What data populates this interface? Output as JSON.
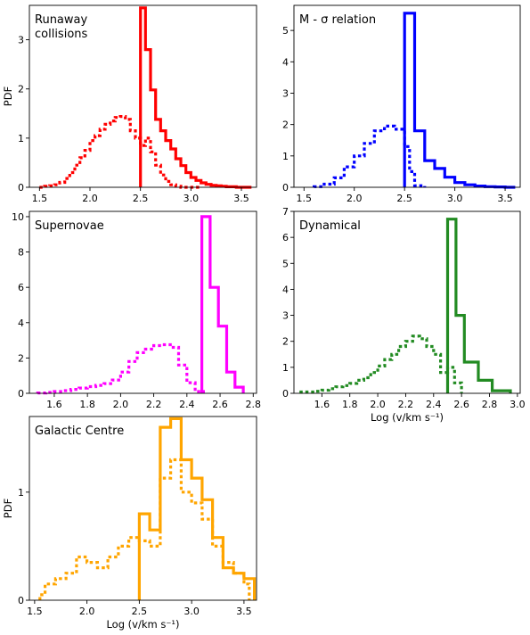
{
  "chart_data": [
    {
      "type": "histogram",
      "title_lines": [
        "Runaway",
        "collisions"
      ],
      "color": "#ff0000",
      "xlim": [
        1.4,
        3.65
      ],
      "ylim": [
        0,
        3.7
      ],
      "xticks": [
        1.5,
        2.0,
        2.5,
        3.0,
        3.5
      ],
      "xtick_labels": [
        "1.5",
        "2.0",
        "2.5",
        "3.0",
        "3.5"
      ],
      "yticks": [
        0,
        1,
        2,
        3
      ],
      "ytick_labels": [
        "0",
        "1",
        "2",
        "3"
      ],
      "ylabel": "PDF",
      "xlabel": "",
      "solid": {
        "edges": [
          2.5,
          2.55,
          2.6,
          2.65,
          2.7,
          2.75,
          2.8,
          2.85,
          2.9,
          2.95,
          3.0,
          3.05,
          3.1,
          3.15,
          3.2,
          3.25,
          3.3,
          3.35,
          3.4,
          3.45,
          3.5,
          3.55,
          3.6
        ],
        "values": [
          3.65,
          2.8,
          1.98,
          1.38,
          1.15,
          0.95,
          0.78,
          0.58,
          0.44,
          0.3,
          0.2,
          0.14,
          0.09,
          0.06,
          0.04,
          0.03,
          0.02,
          0.01,
          0.01,
          0.0,
          0.0,
          0.0
        ]
      },
      "dotted": {
        "edges": [
          1.5,
          1.55,
          1.6,
          1.65,
          1.7,
          1.75,
          1.8,
          1.85,
          1.9,
          1.95,
          2.0,
          2.05,
          2.1,
          2.15,
          2.2,
          2.25,
          2.3,
          2.35,
          2.4,
          2.45,
          2.5,
          2.55,
          2.6,
          2.65,
          2.7,
          2.75,
          2.8,
          2.85,
          2.9,
          2.95,
          3.0,
          3.05,
          3.1
        ],
        "values": [
          0.0,
          0.02,
          0.03,
          0.05,
          0.1,
          0.18,
          0.3,
          0.45,
          0.6,
          0.75,
          0.95,
          1.05,
          1.18,
          1.28,
          1.35,
          1.42,
          1.44,
          1.38,
          1.15,
          1.0,
          0.85,
          1.0,
          0.72,
          0.45,
          0.25,
          0.12,
          0.05,
          0.02,
          0.0,
          0.0,
          0.0,
          0.0
        ]
      }
    },
    {
      "type": "histogram",
      "title_lines": [
        "M - σ relation"
      ],
      "color": "#0000ff",
      "xlim": [
        1.4,
        3.65
      ],
      "ylim": [
        0,
        5.8
      ],
      "xticks": [
        1.5,
        2.0,
        2.5,
        3.0,
        3.5
      ],
      "xtick_labels": [
        "1.5",
        "2.0",
        "2.5",
        "3.0",
        "3.5"
      ],
      "yticks": [
        0,
        1,
        2,
        3,
        4,
        5
      ],
      "ytick_labels": [
        "0",
        "1",
        "2",
        "3",
        "4",
        "5"
      ],
      "ylabel": "",
      "xlabel": "",
      "solid": {
        "edges": [
          2.5,
          2.6,
          2.7,
          2.8,
          2.9,
          3.0,
          3.1,
          3.2,
          3.3,
          3.4,
          3.5,
          3.6
        ],
        "values": [
          5.55,
          1.8,
          0.85,
          0.6,
          0.32,
          0.15,
          0.08,
          0.04,
          0.02,
          0.01,
          0.0
        ]
      },
      "dotted": {
        "edges": [
          1.6,
          1.7,
          1.8,
          1.9,
          2.0,
          2.1,
          2.2,
          2.3,
          2.4,
          2.5,
          2.55,
          2.6,
          2.7
        ],
        "values": [
          0.02,
          0.1,
          0.3,
          0.65,
          1.0,
          1.4,
          1.8,
          1.95,
          1.85,
          1.3,
          0.5,
          0.05
        ]
      }
    },
    {
      "type": "histogram",
      "title_lines": [
        "Supernovae"
      ],
      "color": "#ff00ff",
      "xlim": [
        1.45,
        2.82
      ],
      "ylim": [
        0,
        10.3
      ],
      "xticks": [
        1.6,
        1.8,
        2.0,
        2.2,
        2.4,
        2.6,
        2.8
      ],
      "xtick_labels": [
        "1.6",
        "1.8",
        "2.0",
        "2.2",
        "2.4",
        "2.6",
        "2.8"
      ],
      "yticks": [
        0,
        2,
        4,
        6,
        8,
        10
      ],
      "ytick_labels": [
        "0",
        "2",
        "4",
        "6",
        "8",
        "10"
      ],
      "ylabel": "",
      "xlabel": "",
      "solid": {
        "edges": [
          2.49,
          2.54,
          2.59,
          2.64,
          2.69,
          2.74
        ],
        "values": [
          10.0,
          6.0,
          3.8,
          1.2,
          0.35
        ]
      },
      "dotted": {
        "edges": [
          1.5,
          1.55,
          1.6,
          1.65,
          1.7,
          1.75,
          1.8,
          1.85,
          1.9,
          1.95,
          2.0,
          2.05,
          2.1,
          2.15,
          2.2,
          2.25,
          2.3,
          2.35,
          2.4,
          2.45,
          2.5
        ],
        "values": [
          0.02,
          0.05,
          0.1,
          0.15,
          0.22,
          0.3,
          0.38,
          0.45,
          0.55,
          0.75,
          1.2,
          1.8,
          2.3,
          2.5,
          2.7,
          2.75,
          2.6,
          1.6,
          0.6,
          0.1
        ]
      }
    },
    {
      "type": "histogram",
      "title_lines": [
        "Dynamical"
      ],
      "color": "#228b22",
      "xlim": [
        1.4,
        3.02
      ],
      "ylim": [
        0,
        7.0
      ],
      "xticks": [
        1.6,
        1.8,
        2.0,
        2.2,
        2.4,
        2.6,
        2.8,
        3.0
      ],
      "xtick_labels": [
        "1.6",
        "1.8",
        "2.0",
        "2.2",
        "2.4",
        "2.6",
        "2.8",
        "3.0"
      ],
      "yticks": [
        0,
        1,
        2,
        3,
        4,
        5,
        6,
        7
      ],
      "ytick_labels": [
        "0",
        "1",
        "2",
        "3",
        "4",
        "5",
        "6",
        "7"
      ],
      "ylabel": "",
      "xlabel": "Log (v/km s⁻¹)",
      "solid": {
        "edges": [
          2.5,
          2.56,
          2.62,
          2.72,
          2.82,
          2.95
        ],
        "values": [
          6.7,
          3.0,
          1.2,
          0.5,
          0.1
        ]
      },
      "dotted": {
        "edges": [
          1.45,
          1.55,
          1.6,
          1.65,
          1.7,
          1.75,
          1.8,
          1.85,
          1.9,
          1.95,
          2.0,
          2.05,
          2.1,
          2.15,
          2.2,
          2.25,
          2.3,
          2.35,
          2.4,
          2.45,
          2.5,
          2.55,
          2.6
        ],
        "values": [
          0.05,
          0.08,
          0.12,
          0.18,
          0.25,
          0.3,
          0.38,
          0.5,
          0.6,
          0.8,
          1.05,
          1.3,
          1.5,
          1.8,
          2.0,
          2.2,
          2.1,
          1.8,
          1.5,
          0.8,
          1.0,
          0.4
        ]
      }
    },
    {
      "type": "histogram",
      "title_lines": [
        "Galactic Centre"
      ],
      "color": "#ffa500",
      "xlim": [
        1.45,
        3.62
      ],
      "ylim": [
        0,
        1.7
      ],
      "xticks": [
        1.5,
        2.0,
        2.5,
        3.0,
        3.5
      ],
      "xtick_labels": [
        "1.5",
        "2.0",
        "2.5",
        "3.0",
        "3.5"
      ],
      "yticks": [
        0,
        1
      ],
      "ytick_labels": [
        "0",
        "1"
      ],
      "ylabel": "PDF",
      "xlabel": "Log (v/km s⁻¹)",
      "solid": {
        "edges": [
          2.5,
          2.6,
          2.7,
          2.8,
          2.9,
          3.0,
          3.1,
          3.2,
          3.3,
          3.4,
          3.5,
          3.6
        ],
        "values": [
          0.8,
          0.65,
          1.6,
          1.68,
          1.3,
          1.13,
          0.93,
          0.58,
          0.3,
          0.25,
          0.2
        ]
      },
      "dotted": {
        "edges": [
          1.55,
          1.6,
          1.7,
          1.8,
          1.9,
          2.0,
          2.1,
          2.2,
          2.3,
          2.4,
          2.5,
          2.6,
          2.7,
          2.8,
          2.9,
          3.0,
          3.1,
          3.2,
          3.3,
          3.4,
          3.5,
          3.55
        ],
        "values": [
          0.05,
          0.15,
          0.2,
          0.25,
          0.4,
          0.35,
          0.3,
          0.4,
          0.5,
          0.58,
          0.55,
          0.5,
          1.13,
          1.3,
          1.0,
          0.9,
          0.75,
          0.5,
          0.35,
          0.25,
          0.15
        ]
      }
    }
  ]
}
